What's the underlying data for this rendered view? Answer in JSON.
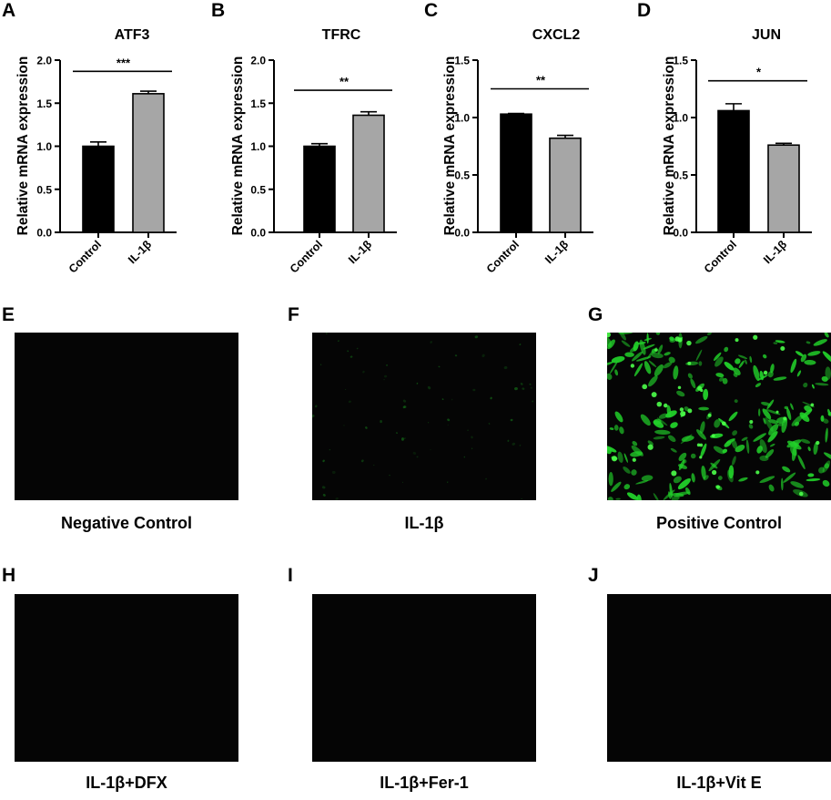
{
  "panel_letters": [
    "A",
    "B",
    "C",
    "D",
    "E",
    "F",
    "G",
    "H",
    "I",
    "J"
  ],
  "chart_data": [
    {
      "type": "bar",
      "title": "ATF3",
      "ylabel": "Relative mRNA expression",
      "categories": [
        "Control",
        "IL-1β"
      ],
      "values": [
        1.0,
        1.61
      ],
      "errors": [
        0.05,
        0.03
      ],
      "bar_colors": [
        "#000000",
        "#a6a6a6"
      ],
      "ylim": [
        0,
        2.0
      ],
      "yticks": [
        "0.0",
        "0.5",
        "1.0",
        "1.5",
        "2.0"
      ],
      "significance": "***",
      "sig_y": 1.87
    },
    {
      "type": "bar",
      "title": "TFRC",
      "ylabel": "Relative mRNA expression",
      "categories": [
        "Control",
        "IL-1β"
      ],
      "values": [
        1.0,
        1.36
      ],
      "errors": [
        0.03,
        0.04
      ],
      "bar_colors": [
        "#000000",
        "#a6a6a6"
      ],
      "ylim": [
        0,
        2.0
      ],
      "yticks": [
        "0.0",
        "0.5",
        "1.0",
        "1.5",
        "2.0"
      ],
      "significance": "**",
      "sig_y": 1.65
    },
    {
      "type": "bar",
      "title": "CXCL2",
      "ylabel": "Relative mRNA expression",
      "categories": [
        "Control",
        "IL-1β"
      ],
      "values": [
        1.03,
        0.82
      ],
      "errors": [
        0.005,
        0.025
      ],
      "bar_colors": [
        "#000000",
        "#a6a6a6"
      ],
      "ylim": [
        0,
        1.5
      ],
      "yticks": [
        "0.0",
        "0.5",
        "1.0",
        "1.5"
      ],
      "significance": "**",
      "sig_y": 1.25
    },
    {
      "type": "bar",
      "title": "JUN",
      "ylabel": "Relative mRNA expression",
      "categories": [
        "Control",
        "IL-1β"
      ],
      "values": [
        1.06,
        0.76
      ],
      "errors": [
        0.06,
        0.015
      ],
      "bar_colors": [
        "#000000",
        "#a6a6a6"
      ],
      "ylim": [
        0,
        1.5
      ],
      "yticks": [
        "0.0",
        "0.5",
        "1.0",
        "1.5"
      ],
      "significance": "*",
      "sig_y": 1.32
    }
  ],
  "micrographs": [
    {
      "caption": "Negative Control",
      "signal": "none"
    },
    {
      "caption": "IL-1β",
      "signal": "faint"
    },
    {
      "caption": "Positive Control",
      "signal": "strong"
    },
    {
      "caption": "IL-1β+DFX",
      "signal": "none"
    },
    {
      "caption": "IL-1β+Fer-1",
      "signal": "none"
    },
    {
      "caption": "IL-1β+Vit E",
      "signal": "none"
    }
  ],
  "colors": {
    "fluorescence": "#22d22a",
    "micrograph_background": "#050505"
  }
}
